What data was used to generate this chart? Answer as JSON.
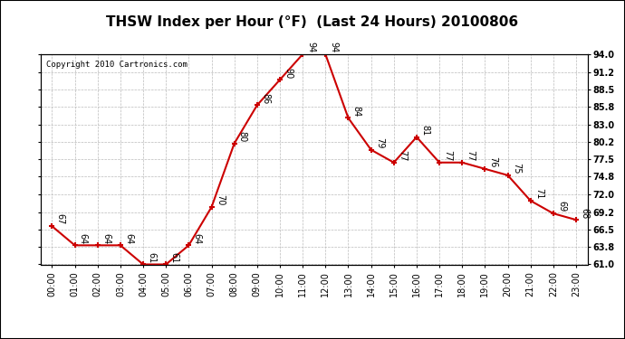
{
  "title": "THSW Index per Hour (°F)  (Last 24 Hours) 20100806",
  "copyright": "Copyright 2010 Cartronics.com",
  "hours": [
    "00:00",
    "01:00",
    "02:00",
    "03:00",
    "04:00",
    "05:00",
    "06:00",
    "07:00",
    "08:00",
    "09:00",
    "10:00",
    "11:00",
    "12:00",
    "13:00",
    "14:00",
    "15:00",
    "16:00",
    "17:00",
    "18:00",
    "19:00",
    "20:00",
    "21:00",
    "22:00",
    "23:00"
  ],
  "values": [
    67,
    64,
    64,
    64,
    61,
    61,
    64,
    70,
    80,
    86,
    90,
    94,
    94,
    84,
    79,
    77,
    81,
    77,
    77,
    76,
    75,
    71,
    69,
    68
  ],
  "line_color": "#cc0000",
  "marker_color": "#cc0000",
  "bg_color": "#ffffff",
  "grid_color": "#bbbbbb",
  "ylim_min": 61.0,
  "ylim_max": 94.0,
  "yticks": [
    61.0,
    63.8,
    66.5,
    69.2,
    72.0,
    74.8,
    77.5,
    80.2,
    83.0,
    85.8,
    88.5,
    91.2,
    94.0
  ],
  "ytick_labels": [
    "61.0",
    "63.8",
    "66.5",
    "69.2",
    "72.0",
    "74.8",
    "77.5",
    "80.2",
    "83.0",
    "85.8",
    "88.5",
    "91.2",
    "94.0"
  ],
  "title_fontsize": 11,
  "label_fontsize": 7,
  "tick_fontsize": 7,
  "copyright_fontsize": 6.5
}
